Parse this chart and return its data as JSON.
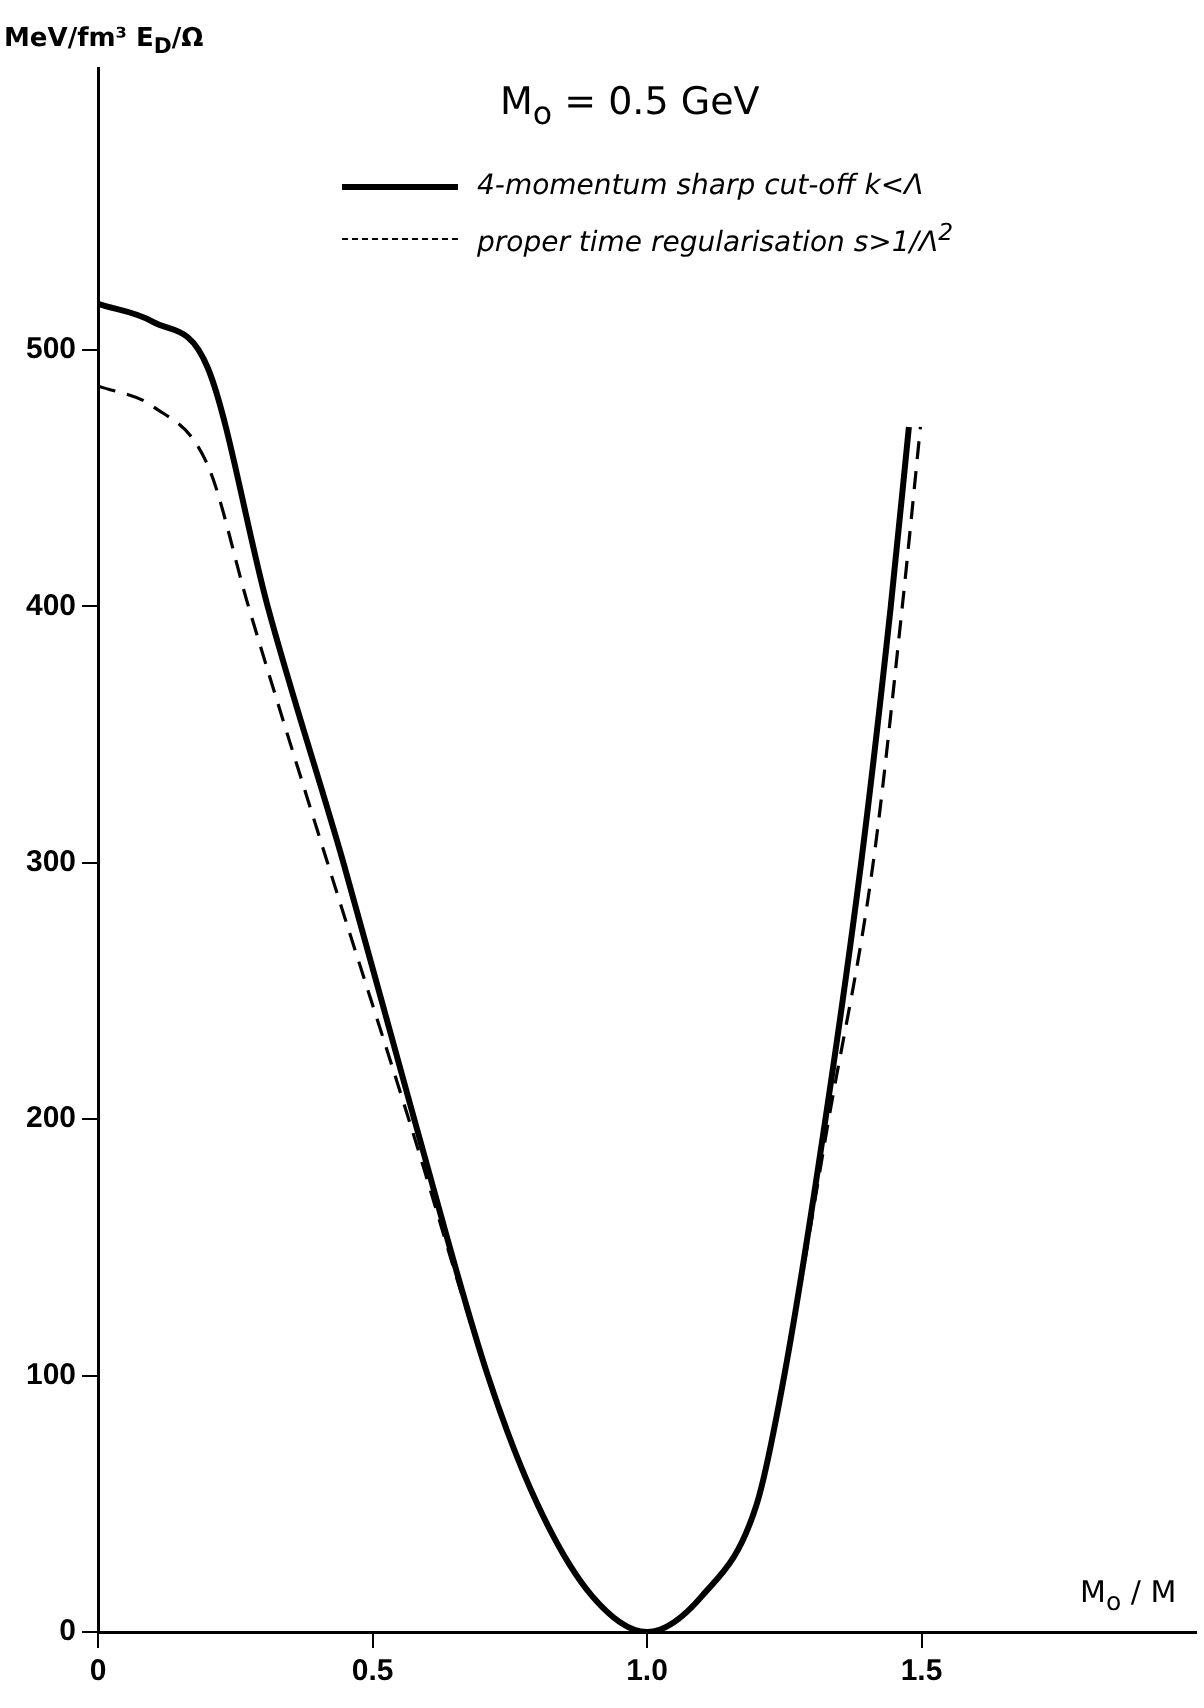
{
  "chart_data": {
    "type": "line",
    "title": "M$_{o}$ = 0.5 GeV",
    "xlabel": "M$_{o}$ / M",
    "ylabel": "MeV/fm³  E$_{D}$/Ω",
    "xlim": [
      0,
      2.0
    ],
    "xticks": [
      0,
      0.5,
      {
        "value": 1,
        "label": "1.0"
      },
      1.5
    ],
    "ylim": [
      0,
      610
    ],
    "yticks": [
      0,
      100,
      200,
      300,
      400,
      500
    ],
    "grid": false,
    "legend": "top",
    "marker": "none",
    "series": [
      {
        "name": "4-momentum sharp cut-off k<Λ",
        "color": "#000000",
        "line_style": "solid",
        "x": [
          0,
          0.1,
          0.2,
          0.309,
          0.447,
          0.576,
          0.71,
          0.8,
          0.9,
          1.0,
          1.1,
          1.2,
          1.25,
          1.325,
          1.39,
          1.444,
          1.477
        ],
        "values": [
          518,
          511,
          493,
          400,
          300,
          200,
          100,
          50,
          14,
          0,
          14,
          50,
          100,
          200,
          300,
          400,
          470
        ]
      },
      {
        "name": "proper time regularisation s>1/Λ$^{2}$",
        "color": "#000000",
        "line_style": "dashed",
        "x": [
          0,
          0.1,
          0.2,
          0.274,
          0.418,
          0.566,
          0.71,
          0.8,
          0.9,
          1.0,
          1.1,
          1.2,
          1.25,
          1.331,
          1.412,
          1.465,
          1.498
        ],
        "values": [
          486,
          478,
          455,
          400,
          300,
          200,
          100,
          50,
          14,
          0,
          14,
          50,
          100,
          200,
          300,
          400,
          470
        ]
      }
    ]
  }
}
